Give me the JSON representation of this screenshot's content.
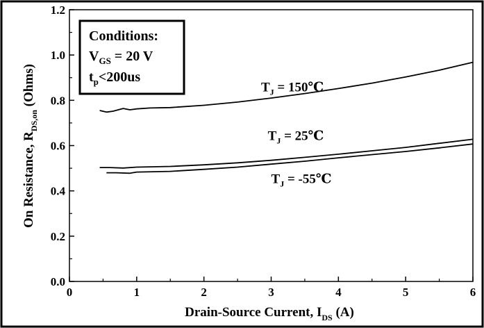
{
  "chart_data": {
    "type": "line",
    "title": "",
    "xlabel_main": "Drain-Source Current, I",
    "xlabel_sub": "DS",
    "xlabel_tail": " (A)",
    "ylabel_main": "On Resistance, R",
    "ylabel_sub": "DS,on",
    "ylabel_tail": " (Ohms)",
    "xlim": [
      0,
      6
    ],
    "ylim": [
      0,
      1.2
    ],
    "x_ticks": [
      0,
      1,
      2,
      3,
      4,
      5,
      6
    ],
    "y_ticks": [
      0,
      0.2,
      0.4,
      0.6,
      0.8,
      1.0,
      1.2
    ],
    "x_tick_labels": [
      "0",
      "1",
      "2",
      "3",
      "4",
      "5",
      "6"
    ],
    "y_tick_labels": [
      "0.0",
      "0.2",
      "0.4",
      "0.6",
      "0.8",
      "1.0",
      "1.2"
    ],
    "grid": false,
    "conditions": {
      "title": "Conditions:",
      "vgs_main": "V",
      "vgs_sub": "GS",
      "vgs_value": " = 20 V",
      "tp_main": "t",
      "tp_sub": "p",
      "tp_value": "<200us"
    },
    "series": [
      {
        "name": "TJ = 150℃",
        "label_main": "T",
        "label_sub": "J",
        "label_value": " = 150℃",
        "label_at": [
          2.85,
          0.84
        ],
        "x": [
          0.45,
          0.55,
          0.65,
          0.75,
          0.8,
          0.9,
          1.0,
          1.2,
          1.5,
          2.0,
          2.5,
          3.0,
          3.5,
          4.0,
          4.5,
          5.0,
          5.5,
          6.0
        ],
        "y": [
          0.755,
          0.748,
          0.752,
          0.76,
          0.764,
          0.758,
          0.762,
          0.766,
          0.768,
          0.778,
          0.792,
          0.81,
          0.83,
          0.852,
          0.876,
          0.903,
          0.933,
          0.968
        ]
      },
      {
        "name": "TJ = 25℃",
        "label_main": "T",
        "label_sub": "J",
        "label_value": " = 25℃",
        "label_at": [
          2.95,
          0.625
        ],
        "x": [
          0.45,
          0.6,
          0.8,
          1.0,
          1.5,
          2.0,
          2.5,
          3.0,
          3.5,
          4.0,
          4.5,
          5.0,
          5.5,
          6.0
        ],
        "y": [
          0.503,
          0.503,
          0.501,
          0.505,
          0.508,
          0.515,
          0.524,
          0.535,
          0.548,
          0.562,
          0.577,
          0.592,
          0.61,
          0.628
        ]
      },
      {
        "name": "TJ = -55℃",
        "label_main": "T",
        "label_sub": "J",
        "label_value": " = -55℃",
        "label_at": [
          3.0,
          0.435
        ],
        "x": [
          0.55,
          0.7,
          0.9,
          1.0,
          1.5,
          2.0,
          2.5,
          3.0,
          3.5,
          4.0,
          4.5,
          5.0,
          5.5,
          6.0
        ],
        "y": [
          0.48,
          0.48,
          0.478,
          0.483,
          0.486,
          0.495,
          0.505,
          0.518,
          0.531,
          0.546,
          0.56,
          0.574,
          0.59,
          0.607
        ]
      }
    ]
  }
}
